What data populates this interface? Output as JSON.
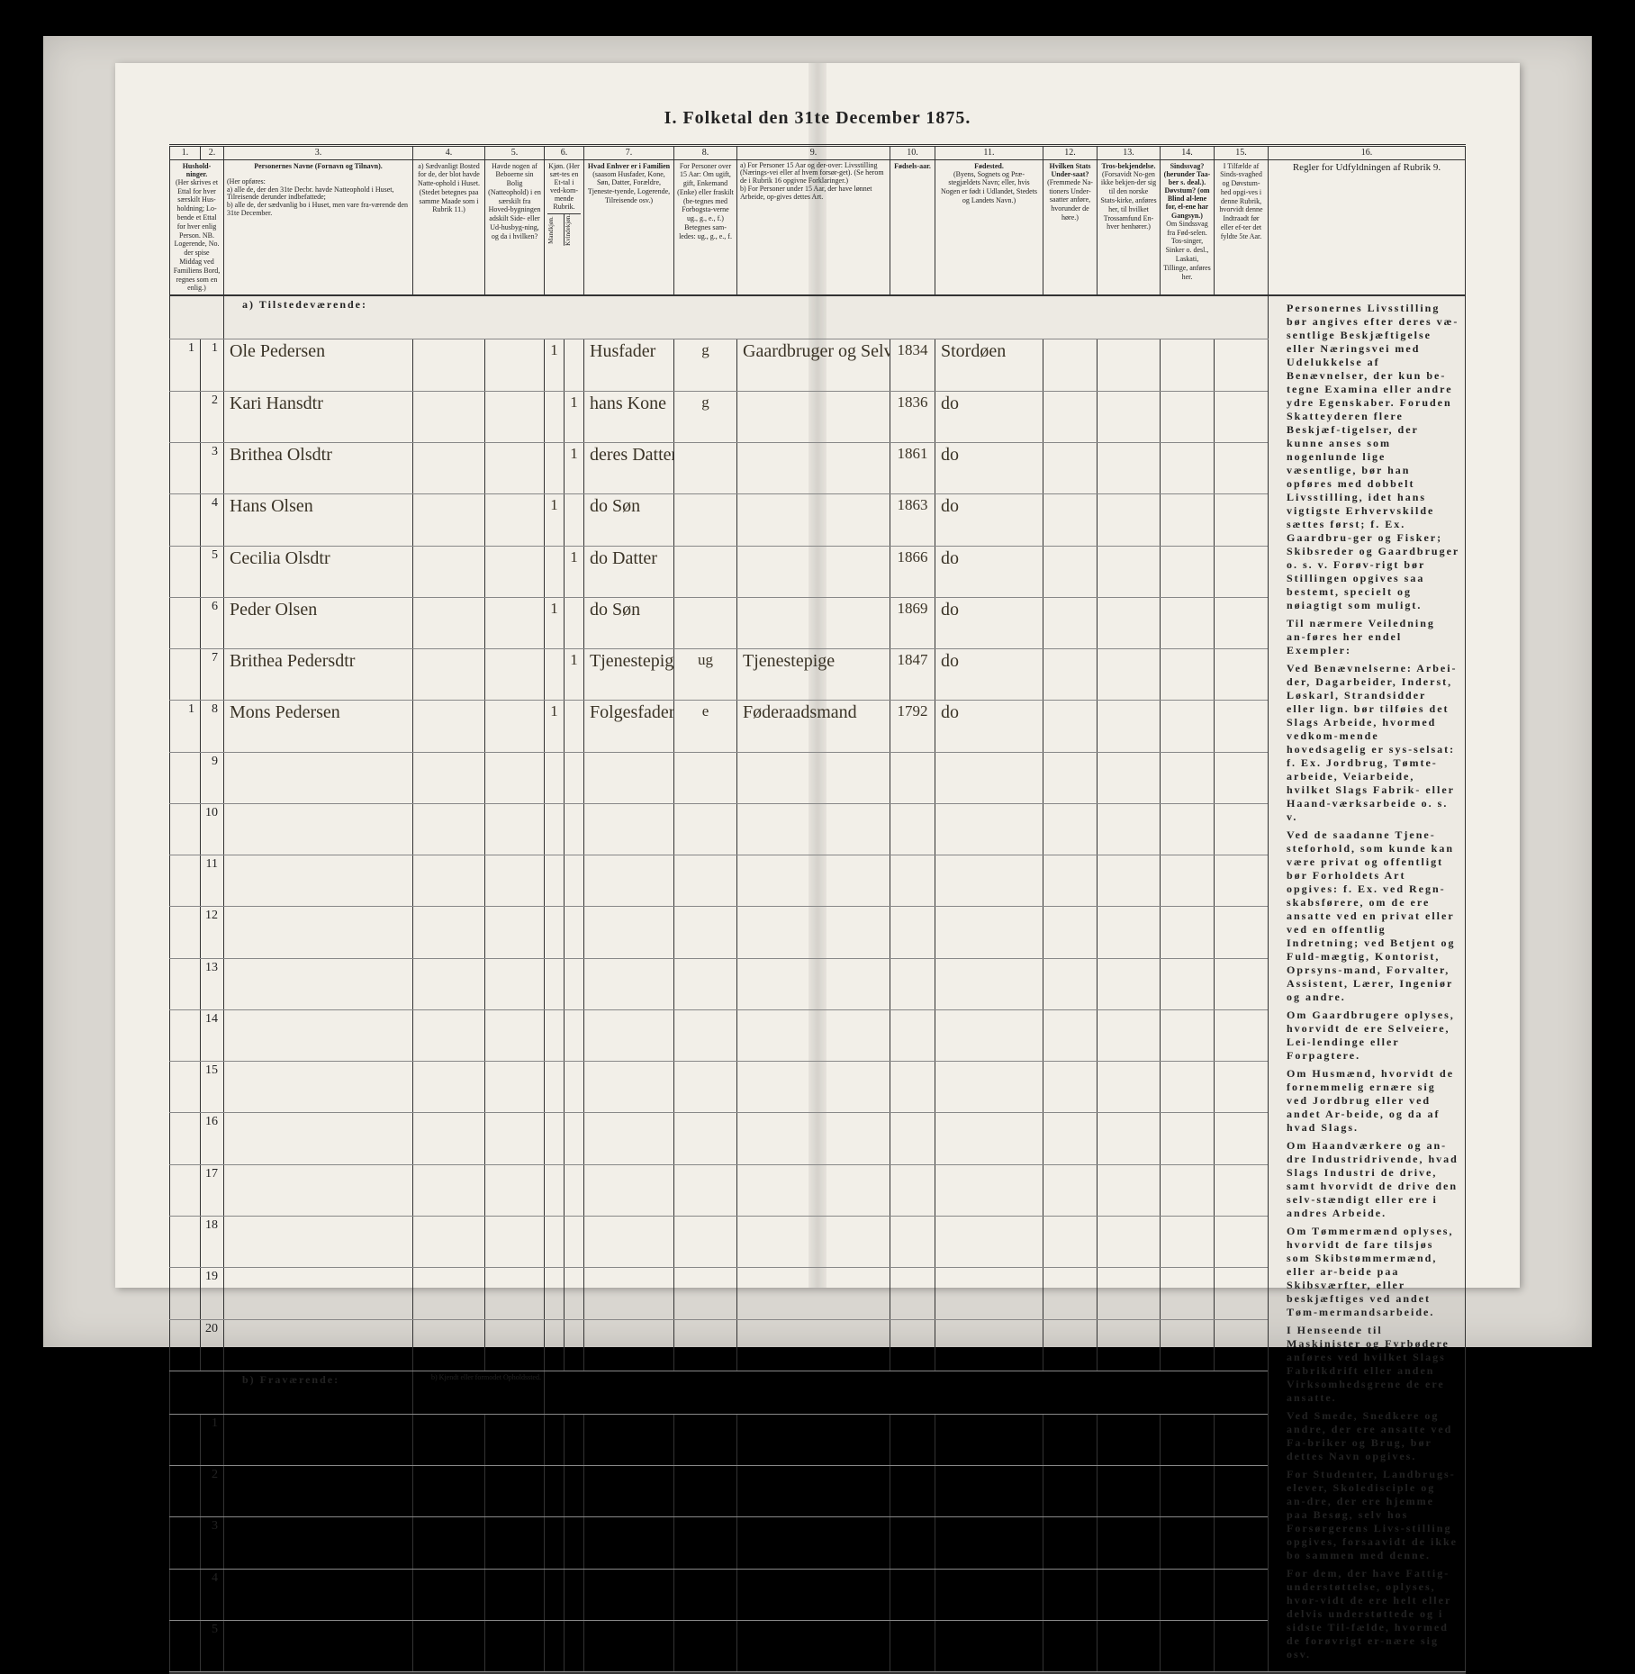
{
  "title": "I.  Folketal  den 31te December 1875.",
  "colnums": [
    "1.",
    "2.",
    "3.",
    "4.",
    "5.",
    "6.",
    "7.",
    "8.",
    "9.",
    "10.",
    "11.",
    "12.",
    "13.",
    "14.",
    "15.",
    "16."
  ],
  "headers": {
    "c1": "Hushold-ninger.",
    "c1_sub": "(Her skrives et Ettal for hver særskilt Hus-holdning; Lo-bende et Ettal for hver enlig Person. NB. Logerende, No. der spise Middag ved Familiens Bord, regnes som en enlig.)",
    "c3": "Personernes Navne (Fornavn og Tilnavn).",
    "c3_sub": "(Her opføres:\na) alle de, der den 31te Decbr. havde Natteophold i Huset, Tilreisende derunder indbefattede;\nb) alle de, der sædvanlig bo i Huset, men vare fra-værende den 31te December.",
    "c4": "a) Sædvanligt Bosted for de, der blot havde Natte-ophold i Huset. (Stedet betegnes paa samme Maade som i Rubrik 11.)",
    "c5": "Havde nogen af Beboerne sin Bolig (Natteophold) i en særskilt fra Hoved-bygningen adskilt Side- eller Ud-husbyg-ning, og da i hvilken?",
    "c6": "Kjøn. (Her sæt-tes en Et-tal i ved-kom-mende Rubrik.",
    "c6a": "Mandkjøn.",
    "c6b": "Kvindekjøn.",
    "c7": "Hvad Enhver er i Familien",
    "c7_sub": "(saasom Husfader, Kone, Søn, Datter, Forældre, Tjeneste-tyende, Logerende, Tilreisende osv.)",
    "c8": "For Personer over 15 Aar: Om ugift, gift, Enkemand (Enke) eller fraskilt (be-tegnes med Forbogsta-verne ug., g., e., f.)  Betegnes sam-ledes: ug., g., e., f.",
    "c9": "a) For Personer 15 Aar og der-over: Livsstilling (Nærings-vei eller af hvem forsør-get). (Se herom de i Rubrik 16 opgivne Forklaringer.)\nb) For Personer under 15 Aar, der have lønnet Arbeide, op-gives dettes Art.",
    "c10": "Fødsels-aar.",
    "c11": "Fødested.",
    "c11_sub": "(Byens, Sognets og Præ-stegjældets Navn; eller, hvis Nogen er født i Udlandet, Stedets og Landets Navn.)",
    "c12": "Hvilken Stats Under-saat?",
    "c12_sub": "(Fremmede Na-tioners Under-saatter anføre, hvorunder de høre.)",
    "c13": "Tros-bekjendelse.",
    "c13_sub": "(Forsavidt No-gen ikke bekjen-der sig til den norske Stats-kirke, anføres her, til hvilket Trossamfund En-hver henhører.)",
    "c14": "Sindssvag? (herunder Taa-ber s. deal.). Døvstum? (om Blind al-lene for, el-ene har Gangsyn.)",
    "c14_sub": "Om Sindssvag fra Fød-selen. Tos-singer, Sinker o. desl., Laskati, Tillinge, anføres her.",
    "c15": "I Tilfælde af Sinds-svaghed og Døvstum-hed opgi-ves i denne Rubrik, hvorvidt denne Indtraadt før eller ef-ter det fyldte 5te Aar.",
    "c16": "Regler for Udfyldningen af Rubrik 9."
  },
  "section_a": "a) Tilstedeværende:",
  "section_b": "b) Fraværende:",
  "section_b_note": "b) Kjendt eller formodet Opholdssted.",
  "rows_a": [
    {
      "n": "1",
      "hh": "1",
      "name": "Ole Pedersen",
      "m": "1",
      "k": "",
      "rel": "Husfader",
      "ms": "g",
      "occ": "Gaardbruger og Selveier",
      "yr": "1834",
      "bp": "Stordøen"
    },
    {
      "n": "2",
      "hh": "",
      "name": "Kari Hansdtr",
      "m": "",
      "k": "1",
      "rel": "hans Kone",
      "ms": "g",
      "occ": "",
      "yr": "1836",
      "bp": "do"
    },
    {
      "n": "3",
      "hh": "",
      "name": "Brithea Olsdtr",
      "m": "",
      "k": "1",
      "rel": "deres Datter",
      "ms": "",
      "occ": "",
      "yr": "1861",
      "bp": "do"
    },
    {
      "n": "4",
      "hh": "",
      "name": "Hans Olsen",
      "m": "1",
      "k": "",
      "rel": "do Søn",
      "ms": "",
      "occ": "",
      "yr": "1863",
      "bp": "do"
    },
    {
      "n": "5",
      "hh": "",
      "name": "Cecilia Olsdtr",
      "m": "",
      "k": "1",
      "rel": "do Datter",
      "ms": "",
      "occ": "",
      "yr": "1866",
      "bp": "do"
    },
    {
      "n": "6",
      "hh": "",
      "name": "Peder Olsen",
      "m": "1",
      "k": "",
      "rel": "do Søn",
      "ms": "",
      "occ": "",
      "yr": "1869",
      "bp": "do"
    },
    {
      "n": "7",
      "hh": "",
      "name": "Brithea Pedersdtr",
      "m": "",
      "k": "1",
      "rel": "Tjenestepige",
      "ms": "ug",
      "occ": "Tjenestepige",
      "yr": "1847",
      "bp": "do"
    },
    {
      "n": "8",
      "hh": "1",
      "name": "Mons Pedersen",
      "m": "1",
      "k": "",
      "rel": "Folgesfader",
      "ms": "e",
      "occ": "Føderaadsmand",
      "yr": "1792",
      "bp": "do"
    }
  ],
  "empty_a": [
    "9",
    "10",
    "11",
    "12",
    "13",
    "14",
    "15",
    "16",
    "17",
    "18",
    "19",
    "20"
  ],
  "empty_b": [
    "1",
    "2",
    "3",
    "4",
    "5"
  ],
  "rules_paragraphs": [
    "Personernes Livsstilling bør angives efter deres væ-sentlige Beskjæftigelse eller Næringsvei med Udelukkelse af Benævnelser, der kun be-tegne Examina eller andre ydre Egenskaber. Foruden Skatteyderen flere Beskjæf-tigelser, der kunne anses som nogenlunde lige væsentlige, bør han opføres med dobbelt Livsstilling, idet hans vigtigste Erhvervskilde sættes først; f. Ex. Gaardbru-ger og Fisker; Skibsreder og Gaardbruger o. s. v. Forøv-rigt bør Stillingen opgives saa <b>bestemt, specielt og nøiagtigt</b> som muligt.",
    "Til nærmere Veiledning an-føres her endel Exempler:",
    "Ved Benævnelserne: <b>Arbei-der, Dagarbeider, Inderst, Løskarl, Strandsidder</b> eller lign. bør tilføies det Slags <b>Arbeide</b>, hvormed vedkom-mende hovedsagelig er sys-selsat: f. Ex. Jordbrug, Tømte-arbeide, Veiarbeide, hvilket Slags Fabrik- eller Haand-værksarbeide o. s. v.",
    "Ved de saadanne Tjene-steforhold, som kunde kan være <b>privat</b> og <b>offentligt</b> bør <b>Forholdets Art</b> opgives: f. Ex. ved Regn-skabsførere, om de ere ansatte ved en privat eller ved en offentlig Indretning; ved Betjent og Fuld-mægtig, Kontorist, Oprsyns-mand, Forvalter, Assistent, Lærer, Ingeniør og andre.",
    "Om <b>Gaardbrugere</b> oplyses, hvorvidt de ere Selveiere, Lei-lendinge eller Forpagtere.",
    "Om <b>Husmænd</b>, hvorvidt de fornemmelig ernære sig ved Jordbrug eller ved andet Ar-beide, og da af hvad Slags.",
    "Om <b>Haandværkere og an-dre Industridrivende</b>, hvad Slags Industri de drive, samt hvorvidt de drive den selv-stændigt eller ere i andres Arbeide.",
    "Om <b>Tømmermænd</b> oplyses, hvorvidt de fare tilsjøs som Skibstømmermænd, eller ar-beide paa Skibsværfter, eller beskjæftiges ved andet Tøm-mermandsarbeide.",
    "I Henseende til <b>Maskinister og Fyrbødere</b> anføres ved hvilket Slags Fabrikdrift eller anden Virksomhedsgrene de ere ansatte.",
    "Ved <b>Smede, Snedkere og andre</b>, der ere ansatte ved Fa-briker og Brug, bør dettes Navn opgives.",
    "For <b>Studenter, Landbrugs-elever, Skoledisciple</b> og an-dre, der ere hjemme paa Besøg, selv hos <b>Forsørgerens Livs-stilling</b> opgives, forsaavidt de ikke bo sammen med denne.",
    "For dem, der have <b>Fattig-understøttelse</b>, oplyses, hvor-vidt de ere helt eller delvis understøttede og i sidste Til-fælde, hvormed de forøvrigt er-nære sig osv."
  ]
}
